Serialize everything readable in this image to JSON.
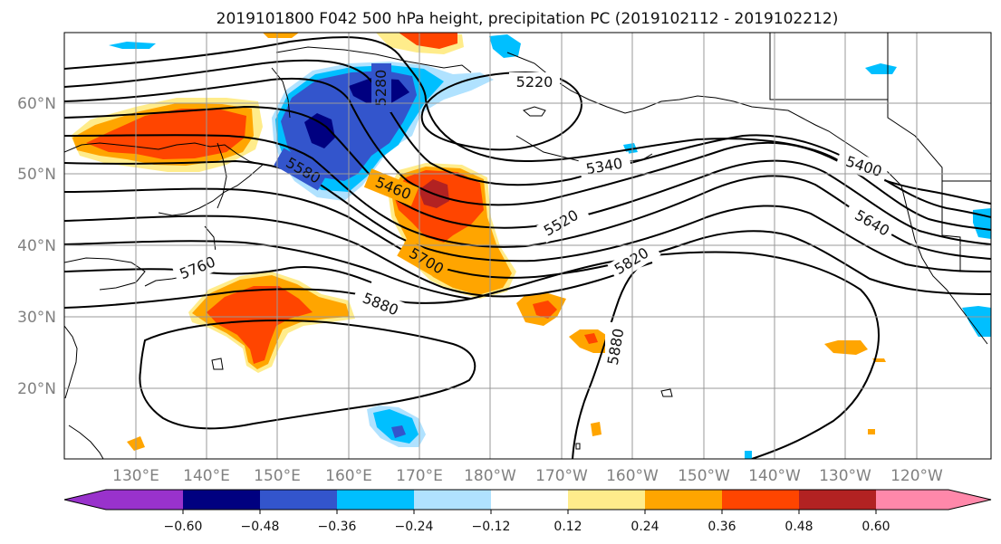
{
  "title": "2019101800 F042 500 hPa height, precipitation PC (2019102112 - 2019102212)",
  "map": {
    "lon_labels": [
      "130°E",
      "140°E",
      "150°E",
      "160°E",
      "170°E",
      "180°W",
      "170°W",
      "160°W",
      "150°W",
      "140°W",
      "130°W",
      "120°W"
    ],
    "lat_labels": [
      "20°N",
      "30°N",
      "40°N",
      "50°N",
      "60°N"
    ],
    "contour_labels": [
      "5220",
      "5280",
      "5340",
      "5400",
      "5460",
      "5520",
      "5580",
      "5640",
      "5700",
      "5760",
      "5820",
      "5880",
      "5880"
    ],
    "gridlines": true,
    "contour_color": "#000000"
  },
  "colorbar": {
    "ticks": [
      "−0.60",
      "−0.48",
      "−0.36",
      "−0.24",
      "−0.12",
      "0.12",
      "0.24",
      "0.36",
      "0.48",
      "0.60"
    ],
    "colors": [
      "#9932CC",
      "#000080",
      "#3355CC",
      "#00BFFF",
      "#B0E2FF",
      "#FFFFFF",
      "#FFEC8B",
      "#FFA500",
      "#FF4500",
      "#B22222",
      "#FF88AA"
    ],
    "extend": "both"
  }
}
